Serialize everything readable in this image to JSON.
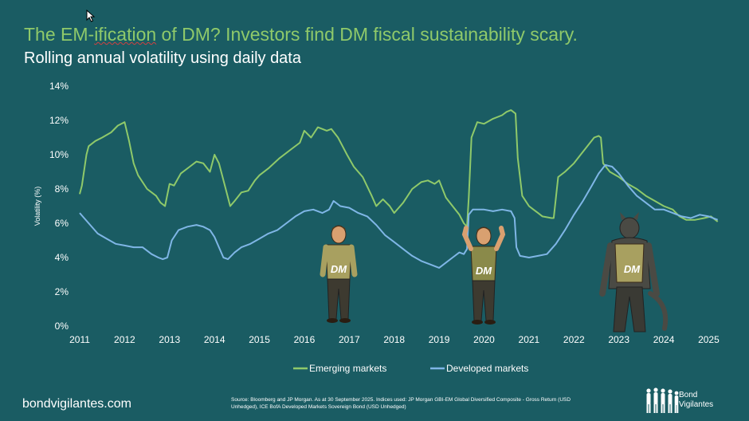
{
  "header": {
    "title_part1": "The EM-",
    "title_part2": "ification",
    "title_part3": " of DM? Investors find DM fiscal sustainability scary.",
    "subtitle": "Rolling annual volatility using daily data"
  },
  "colors": {
    "background": "#1a5c63",
    "title": "#8fc96a",
    "emerging": "#8fc96a",
    "developed": "#7fb6e6",
    "axis_text": "#ffffff"
  },
  "chart_data": {
    "type": "line",
    "ylabel": "Volatility (%)",
    "ylim": [
      0,
      14
    ],
    "xlim": [
      2011,
      2025.4
    ],
    "y_ticks": [
      "0%",
      "2%",
      "4%",
      "6%",
      "8%",
      "10%",
      "12%",
      "14%"
    ],
    "x_ticks": [
      "2011",
      "2012",
      "2013",
      "2014",
      "2015",
      "2016",
      "2017",
      "2018",
      "2019",
      "2020",
      "2021",
      "2022",
      "2023",
      "2024",
      "2025"
    ],
    "grid": false,
    "legend_position": "bottom",
    "series": [
      {
        "name": "Emerging markets",
        "color": "#8fc96a",
        "x": [
          2011.0,
          2011.05,
          2011.15,
          2011.2,
          2011.35,
          2011.5,
          2011.7,
          2011.85,
          2012.0,
          2012.1,
          2012.2,
          2012.3,
          2012.5,
          2012.7,
          2012.8,
          2012.9,
          2013.0,
          2013.1,
          2013.25,
          2013.45,
          2013.6,
          2013.75,
          2013.9,
          2014.0,
          2014.1,
          2014.25,
          2014.35,
          2014.45,
          2014.6,
          2014.75,
          2014.9,
          2015.0,
          2015.2,
          2015.45,
          2015.7,
          2015.9,
          2016.0,
          2016.15,
          2016.3,
          2016.5,
          2016.6,
          2016.75,
          2016.85,
          2016.95,
          2017.1,
          2017.3,
          2017.5,
          2017.6,
          2017.75,
          2017.9,
          2018.0,
          2018.2,
          2018.4,
          2018.6,
          2018.75,
          2018.9,
          2019.0,
          2019.15,
          2019.3,
          2019.45,
          2019.55,
          2019.62,
          2019.66,
          2019.72,
          2019.85,
          2020.0,
          2020.2,
          2020.4,
          2020.5,
          2020.6,
          2020.7,
          2020.75,
          2020.85,
          2021.0,
          2021.1,
          2021.2,
          2021.3,
          2021.5,
          2021.55,
          2021.65,
          2021.8,
          2022.0,
          2022.15,
          2022.3,
          2022.45,
          2022.55,
          2022.6,
          2022.65,
          2022.8,
          2023.0,
          2023.2,
          2023.4,
          2023.6,
          2023.8,
          2024.0,
          2024.2,
          2024.35,
          2024.5,
          2024.7,
          2024.9,
          2025.05,
          2025.2
        ],
        "values": [
          7.7,
          8.2,
          10.0,
          10.5,
          10.8,
          11.0,
          11.3,
          11.7,
          11.9,
          10.8,
          9.5,
          8.8,
          8.0,
          7.6,
          7.2,
          7.0,
          8.3,
          8.2,
          8.9,
          9.3,
          9.6,
          9.5,
          9.0,
          10.0,
          9.5,
          8.0,
          7.0,
          7.3,
          7.8,
          7.9,
          8.5,
          8.8,
          9.2,
          9.8,
          10.3,
          10.7,
          11.4,
          11.0,
          11.6,
          11.4,
          11.5,
          11.0,
          10.5,
          10.0,
          9.3,
          8.7,
          7.6,
          7.0,
          7.4,
          7.0,
          6.6,
          7.2,
          8.0,
          8.4,
          8.5,
          8.3,
          8.5,
          7.5,
          7.0,
          6.5,
          6.0,
          5.8,
          7.5,
          11.0,
          11.9,
          11.8,
          12.1,
          12.3,
          12.5,
          12.6,
          12.4,
          9.8,
          7.6,
          7.0,
          6.8,
          6.6,
          6.4,
          6.3,
          6.3,
          8.7,
          9.0,
          9.5,
          10.0,
          10.5,
          11.0,
          11.1,
          11.0,
          9.5,
          9.0,
          8.7,
          8.3,
          8.0,
          7.6,
          7.3,
          7.0,
          6.8,
          6.4,
          6.2,
          6.2,
          6.3,
          6.4,
          6.1
        ]
      },
      {
        "name": "Developed markets",
        "color": "#7fb6e6",
        "x": [
          2011.0,
          2011.2,
          2011.4,
          2011.6,
          2011.8,
          2012.0,
          2012.2,
          2012.4,
          2012.6,
          2012.75,
          2012.85,
          2012.95,
          2013.05,
          2013.2,
          2013.4,
          2013.6,
          2013.75,
          2013.9,
          2014.0,
          2014.1,
          2014.2,
          2014.3,
          2014.45,
          2014.6,
          2014.8,
          2015.0,
          2015.2,
          2015.4,
          2015.6,
          2015.8,
          2016.0,
          2016.2,
          2016.4,
          2016.55,
          2016.65,
          2016.8,
          2017.0,
          2017.2,
          2017.4,
          2017.6,
          2017.8,
          2018.0,
          2018.2,
          2018.4,
          2018.6,
          2018.8,
          2019.0,
          2019.15,
          2019.3,
          2019.45,
          2019.55,
          2019.62,
          2019.66,
          2019.75,
          2020.0,
          2020.2,
          2020.4,
          2020.6,
          2020.68,
          2020.72,
          2020.8,
          2021.0,
          2021.2,
          2021.4,
          2021.6,
          2021.8,
          2022.0,
          2022.2,
          2022.4,
          2022.55,
          2022.7,
          2022.85,
          2023.0,
          2023.2,
          2023.4,
          2023.6,
          2023.8,
          2024.0,
          2024.2,
          2024.4,
          2024.6,
          2024.8,
          2025.0,
          2025.2
        ],
        "values": [
          6.6,
          6.0,
          5.4,
          5.1,
          4.8,
          4.7,
          4.6,
          4.6,
          4.2,
          4.0,
          3.9,
          4.0,
          5.0,
          5.6,
          5.8,
          5.9,
          5.8,
          5.6,
          5.2,
          4.6,
          4.0,
          3.9,
          4.3,
          4.6,
          4.8,
          5.1,
          5.4,
          5.6,
          6.0,
          6.4,
          6.7,
          6.8,
          6.6,
          6.8,
          7.3,
          7.0,
          6.9,
          6.6,
          6.4,
          5.9,
          5.3,
          4.9,
          4.5,
          4.1,
          3.8,
          3.6,
          3.4,
          3.7,
          4.0,
          4.3,
          4.2,
          4.5,
          6.5,
          6.8,
          6.8,
          6.7,
          6.8,
          6.7,
          6.3,
          4.6,
          4.1,
          4.0,
          4.1,
          4.2,
          4.8,
          5.6,
          6.5,
          7.3,
          8.2,
          8.9,
          9.4,
          9.3,
          8.9,
          8.2,
          7.6,
          7.2,
          6.8,
          6.8,
          6.6,
          6.4,
          6.3,
          6.5,
          6.4,
          6.2
        ]
      }
    ],
    "annotations": [
      "DM",
      "DM",
      "DM"
    ]
  },
  "footer": {
    "url": "bondvigilantes.com",
    "source": "Source: Bloomberg and JP Morgan. As at 30 September 2025. Indices used: JP Morgan GBI-EM Global Diversified Composite - Gross Return (USD Unhedged), ICE BofA Developed Markets Sovereign Bond (USD Unhedged)",
    "logo_line1": "Bond",
    "logo_line2": "Vigilantes"
  }
}
